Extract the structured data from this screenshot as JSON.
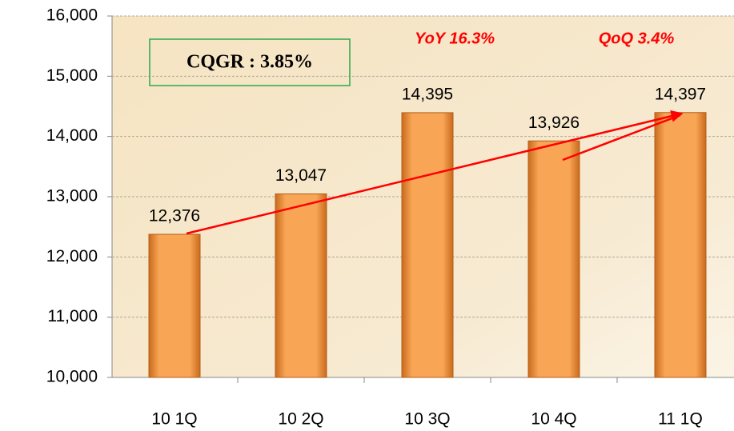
{
  "chart_data": {
    "type": "bar",
    "categories": [
      "10 1Q",
      "10 2Q",
      "10 3Q",
      "10 4Q",
      "11 1Q"
    ],
    "values": [
      12376,
      13047,
      14395,
      13926,
      14397
    ],
    "value_labels": [
      "12,376",
      "13,047",
      "14,395",
      "13,926",
      "14,397"
    ],
    "color": "#f5a04e",
    "ylim": [
      10000,
      16000
    ],
    "yticks": [
      {
        "value": 10000,
        "label": "10,000"
      },
      {
        "value": 11000,
        "label": "11,000"
      },
      {
        "value": 12000,
        "label": "12,000"
      },
      {
        "value": 13000,
        "label": "13,000"
      },
      {
        "value": 14000,
        "label": "14,000"
      },
      {
        "value": 15000,
        "label": "15,000"
      },
      {
        "value": 16000,
        "label": "16,000"
      }
    ],
    "grid": true,
    "annotations": [
      "CQGR : 3.85%",
      "YoY 16.3%",
      "QoQ 3.4%"
    ]
  }
}
